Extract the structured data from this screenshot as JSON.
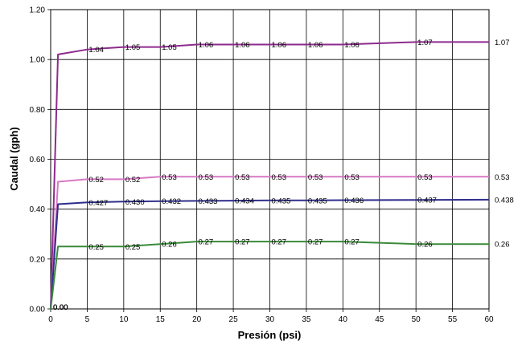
{
  "chart_data": {
    "type": "line",
    "title": "",
    "xlabel": "Presión (psi)",
    "ylabel": "Caudal (gph)",
    "xlim": [
      0,
      60
    ],
    "ylim": [
      0,
      1.2
    ],
    "xticks": [
      "0",
      "5",
      "10",
      "15",
      "20",
      "25",
      "30",
      "35",
      "40",
      "45",
      "50",
      "55",
      "60"
    ],
    "yticks": [
      "0.00",
      "0.20",
      "0.40",
      "0.60",
      "0.80",
      "1.00",
      "1.20"
    ],
    "grid": true,
    "legend": "none",
    "series": [
      {
        "color": "#8e2a8e",
        "x": [
          0,
          1,
          5,
          10,
          15,
          20,
          25,
          30,
          35,
          40,
          50,
          60
        ],
        "y": [
          0,
          1.02,
          1.04,
          1.05,
          1.05,
          1.06,
          1.06,
          1.06,
          1.06,
          1.06,
          1.07,
          1.07
        ],
        "labels": [
          "0.00",
          "",
          "1.04",
          "1.05",
          "1.05",
          "1.06",
          "1.06",
          "1.06",
          "1.06",
          "1.06",
          "1.07",
          "1.07"
        ]
      },
      {
        "color": "#d779c4",
        "x": [
          0,
          1,
          5,
          10,
          15,
          20,
          25,
          30,
          35,
          40,
          50,
          60
        ],
        "y": [
          0,
          0.51,
          0.52,
          0.52,
          0.53,
          0.53,
          0.53,
          0.53,
          0.53,
          0.53,
          0.53,
          0.53
        ],
        "labels": [
          "0.00",
          "",
          "0.52",
          "0.52",
          "0.53",
          "0.53",
          "0.53",
          "0.53",
          "0.53",
          "0.53",
          "0.53",
          "0.53"
        ]
      },
      {
        "color": "#2e2e8c",
        "x": [
          0,
          1,
          5,
          10,
          15,
          20,
          25,
          30,
          35,
          40,
          50,
          60
        ],
        "y": [
          0,
          0.42,
          0.427,
          0.43,
          0.432,
          0.433,
          0.434,
          0.435,
          0.435,
          0.436,
          0.437,
          0.438
        ],
        "labels": [
          "0.00",
          "",
          "0.427",
          "0.430",
          "0.432",
          "0.433",
          "0.434",
          "0.435",
          "0.435",
          "0.436",
          "0.437",
          "0.438"
        ]
      },
      {
        "color": "#3a8a3a",
        "x": [
          0,
          1,
          5,
          10,
          15,
          20,
          25,
          30,
          35,
          40,
          50,
          60
        ],
        "y": [
          0,
          0.25,
          0.25,
          0.25,
          0.26,
          0.27,
          0.27,
          0.27,
          0.27,
          0.27,
          0.26,
          0.26
        ],
        "labels": [
          "0.00",
          "",
          "0.25",
          "0.25",
          "0.26",
          "0.27",
          "0.27",
          "0.27",
          "0.27",
          "0.27",
          "0.26",
          "0.26"
        ]
      }
    ]
  }
}
